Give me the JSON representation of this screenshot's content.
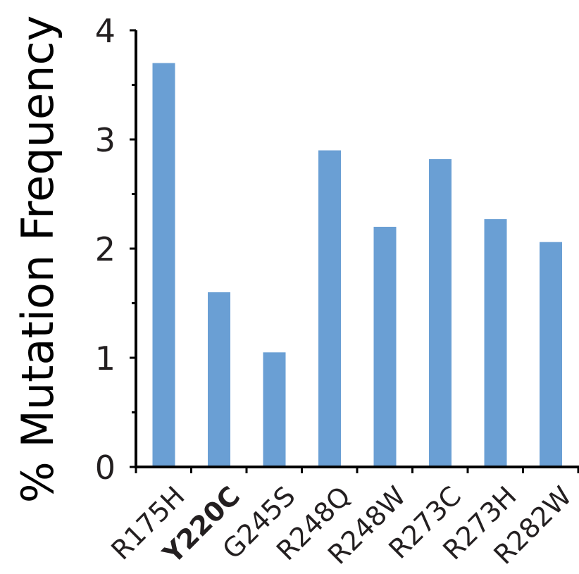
{
  "chart_data": {
    "type": "bar",
    "ylabel": "% Mutation Frequency",
    "xlabel": "",
    "title": "",
    "categories": [
      "R175H",
      "Y220C",
      "G245S",
      "R248Q",
      "R248W",
      "R273C",
      "R273H",
      "R282W"
    ],
    "highlighted_category": "Y220C",
    "values": [
      3.7,
      1.6,
      1.05,
      2.9,
      2.2,
      2.82,
      2.27,
      2.06
    ],
    "ylim": [
      0,
      4
    ],
    "yticks": [
      "0",
      "1",
      "2",
      "3",
      "4"
    ],
    "grid": false,
    "bar_color": "#6a9fd4",
    "axis_color": "#000000"
  }
}
